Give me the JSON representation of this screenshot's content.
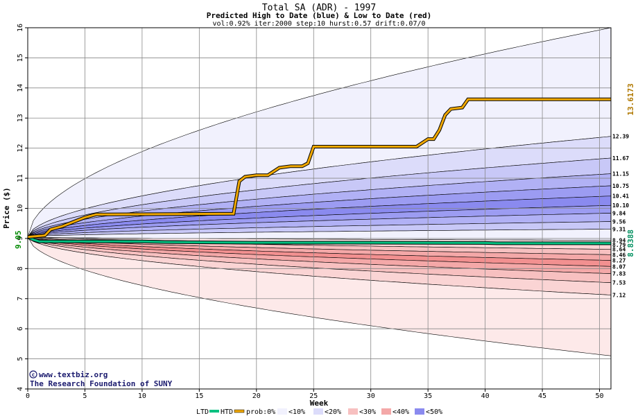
{
  "chart_data": {
    "type": "area",
    "title": "Total SA (ADR) - 1997",
    "subtitle": "Predicted High to Date (blue) &  Low to Date (red)",
    "params": "vol:0.92% iter:2000 step:10 hurst:0.57 drift:0.07/0",
    "xlabel": "Week",
    "ylabel": "Price ($)",
    "xlim": [
      0,
      51
    ],
    "ylim": [
      4,
      16
    ],
    "x_ticks": [
      0,
      5,
      10,
      15,
      20,
      25,
      30,
      35,
      40,
      45,
      50
    ],
    "y_ticks": [
      4,
      5,
      6,
      7,
      8,
      9,
      10,
      11,
      12,
      13,
      14,
      15,
      16
    ],
    "grid": true,
    "start_price": 9.05,
    "start_price_label": "9.05",
    "final_high_label": "13.6173",
    "final_low_label": "8.8388",
    "percentile_labels": [
      "12.39",
      "11.67",
      "11.15",
      "10.75",
      "10.41",
      "10.10",
      "9.84",
      "9.56",
      "9.31",
      "8.94",
      "8.79",
      "8.64",
      "8.46",
      "8.27",
      "8.07",
      "7.83",
      "7.53",
      "7.12"
    ],
    "bands": {
      "high": {
        "ends": [
          16.0,
          12.39,
          11.67,
          11.15,
          10.75,
          10.41,
          10.1,
          9.84,
          9.56,
          9.31
        ],
        "colors": [
          "#f1f1fd",
          "#dcdcfa",
          "#c8c8f7",
          "#b1b1f5",
          "#9c9cf2",
          "#8a8aef",
          "#9c9cf2",
          "#b1b1f5",
          "#c8c8f7",
          "#f1f1fd"
        ]
      },
      "low": {
        "ends": [
          8.94,
          8.79,
          8.64,
          8.46,
          8.27,
          8.07,
          7.83,
          7.53,
          7.12,
          5.1
        ],
        "colors": [
          "#fde9e9",
          "#fad4d4",
          "#f7c0c0",
          "#f4a8a8",
          "#f29090",
          "#f4a8a8",
          "#f7c0c0",
          "#fad4d4",
          "#fde9e9",
          "#fde9e9"
        ]
      },
      "outer_high_start_slope_note": "",
      "bottom_end": 5.1
    },
    "htd_series": {
      "name": "HTD",
      "color": "#f0a800",
      "x": [
        0,
        1.5,
        2,
        3,
        4,
        5,
        6,
        7,
        18,
        18.5,
        19,
        20,
        21,
        22,
        23,
        24,
        24.5,
        25,
        26,
        30,
        34,
        35,
        35.5,
        36,
        36.5,
        37,
        38,
        38.5,
        51
      ],
      "y": [
        9.05,
        9.1,
        9.3,
        9.4,
        9.55,
        9.7,
        9.8,
        9.8,
        9.82,
        10.9,
        11.05,
        11.1,
        11.1,
        11.35,
        11.4,
        11.4,
        11.5,
        12.05,
        12.05,
        12.05,
        12.05,
        12.3,
        12.3,
        12.6,
        13.1,
        13.3,
        13.35,
        13.62,
        13.62
      ]
    },
    "ltd_series": {
      "name": "LTD",
      "color": "#00c080",
      "x": [
        0,
        0.5,
        1,
        10,
        12,
        20,
        30,
        40,
        41,
        51
      ],
      "y": [
        9.05,
        8.96,
        8.9,
        8.9,
        8.88,
        8.86,
        8.86,
        8.85,
        8.84,
        8.84
      ]
    }
  },
  "credit": {
    "line1": "www.textbiz.org",
    "line2": "The Research Foundation of SUNY"
  },
  "legend": {
    "ltd": "LTD",
    "htd": "HTD",
    "prob": "prob:0%",
    "b10": "<10%",
    "b20": "<20%",
    "b30": "<30%",
    "b40": "<40%",
    "b50": "<50%"
  }
}
